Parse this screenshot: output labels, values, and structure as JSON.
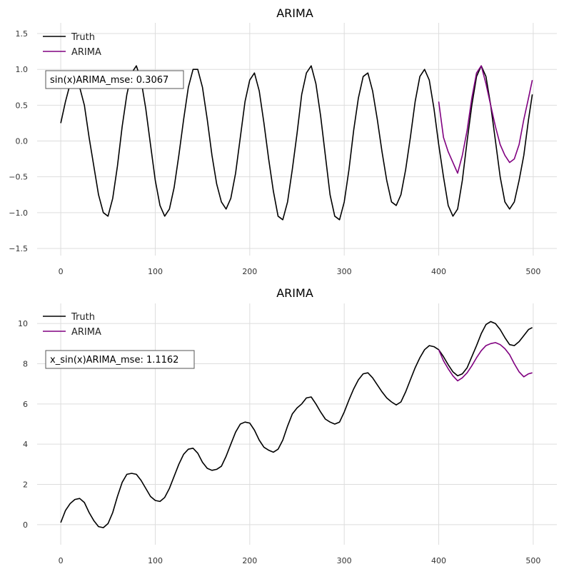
{
  "chart_data": [
    {
      "type": "line",
      "title": "ARIMA",
      "xlabel": "",
      "ylabel": "",
      "xlim": [
        -25,
        525
      ],
      "ylim": [
        -1.6,
        1.65
      ],
      "xticks": [
        0,
        100,
        200,
        300,
        400,
        500
      ],
      "xtick_labels": [
        "0",
        "100",
        "200",
        "300",
        "400",
        "500"
      ],
      "yticks": [
        -1.5,
        -1.0,
        -0.5,
        0.0,
        0.5,
        1.0,
        1.5
      ],
      "ytick_labels": [
        "−1.5",
        "−1.0",
        "−0.5",
        "0.0",
        "0.5",
        "1.0",
        "1.5"
      ],
      "grid": true,
      "legend_position": "top-left",
      "annotation": "sin(x)ARIMA_mse: 0.3067",
      "series": [
        {
          "name": "Truth",
          "color": "#000000",
          "x": [
            0,
            5,
            10,
            15,
            20,
            25,
            30,
            35,
            40,
            45,
            50,
            55,
            60,
            65,
            70,
            75,
            80,
            85,
            90,
            95,
            100,
            105,
            110,
            115,
            120,
            125,
            130,
            135,
            140,
            145,
            150,
            155,
            160,
            165,
            170,
            175,
            180,
            185,
            190,
            195,
            200,
            205,
            210,
            215,
            220,
            225,
            230,
            235,
            240,
            245,
            250,
            255,
            260,
            265,
            270,
            275,
            280,
            285,
            290,
            295,
            300,
            305,
            310,
            315,
            320,
            325,
            330,
            335,
            340,
            345,
            350,
            355,
            360,
            365,
            370,
            375,
            380,
            385,
            390,
            395,
            400,
            405,
            410,
            415,
            420,
            425,
            430,
            435,
            440,
            445,
            450,
            455,
            460,
            465,
            470,
            475,
            480,
            485,
            490,
            495,
            499
          ],
          "y": [
            0.25,
            0.55,
            0.8,
            0.9,
            0.75,
            0.5,
            0.05,
            -0.35,
            -0.75,
            -1.0,
            -1.05,
            -0.8,
            -0.35,
            0.2,
            0.65,
            0.95,
            1.05,
            0.85,
            0.45,
            -0.05,
            -0.55,
            -0.9,
            -1.05,
            -0.95,
            -0.65,
            -0.2,
            0.3,
            0.75,
            1.0,
            1.0,
            0.75,
            0.3,
            -0.2,
            -0.6,
            -0.85,
            -0.95,
            -0.8,
            -0.45,
            0.05,
            0.55,
            0.85,
            0.95,
            0.7,
            0.25,
            -0.25,
            -0.7,
            -1.05,
            -1.1,
            -0.85,
            -0.4,
            0.1,
            0.65,
            0.95,
            1.05,
            0.8,
            0.35,
            -0.2,
            -0.75,
            -1.05,
            -1.1,
            -0.85,
            -0.4,
            0.15,
            0.6,
            0.9,
            0.95,
            0.7,
            0.3,
            -0.15,
            -0.55,
            -0.85,
            -0.9,
            -0.75,
            -0.4,
            0.05,
            0.55,
            0.9,
            1.0,
            0.85,
            0.45,
            -0.05,
            -0.5,
            -0.9,
            -1.05,
            -0.95,
            -0.55,
            0.0,
            0.5,
            0.9,
            1.05,
            0.9,
            0.5,
            0.0,
            -0.5,
            -0.85,
            -0.95,
            -0.85,
            -0.55,
            -0.2,
            0.3,
            0.65
          ]
        },
        {
          "name": "ARIMA",
          "color": "#800080",
          "x": [
            400,
            405,
            410,
            415,
            420,
            425,
            430,
            435,
            440,
            445,
            450,
            455,
            460,
            465,
            470,
            475,
            480,
            485,
            490,
            495,
            499
          ],
          "y": [
            0.55,
            0.05,
            -0.15,
            -0.3,
            -0.45,
            -0.2,
            0.15,
            0.6,
            0.95,
            1.05,
            0.8,
            0.5,
            0.2,
            -0.05,
            -0.2,
            -0.3,
            -0.25,
            -0.05,
            0.3,
            0.6,
            0.85
          ]
        }
      ]
    },
    {
      "type": "line",
      "title": "ARIMA",
      "xlabel": "",
      "ylabel": "",
      "xlim": [
        -25,
        525
      ],
      "ylim": [
        -1.0,
        11.0
      ],
      "xticks": [
        0,
        100,
        200,
        300,
        400,
        500
      ],
      "xtick_labels": [
        "0",
        "100",
        "200",
        "300",
        "400",
        "500"
      ],
      "yticks": [
        0,
        2,
        4,
        6,
        8,
        10
      ],
      "ytick_labels": [
        "0",
        "2",
        "4",
        "6",
        "8",
        "10"
      ],
      "grid": true,
      "legend_position": "top-left",
      "annotation": "x_sin(x)ARIMA_mse: 1.1162",
      "series": [
        {
          "name": "Truth",
          "color": "#000000",
          "x": [
            0,
            5,
            10,
            15,
            20,
            25,
            30,
            35,
            40,
            45,
            50,
            55,
            60,
            65,
            70,
            75,
            80,
            85,
            90,
            95,
            100,
            105,
            110,
            115,
            120,
            125,
            130,
            135,
            140,
            145,
            150,
            155,
            160,
            165,
            170,
            175,
            180,
            185,
            190,
            195,
            200,
            205,
            210,
            215,
            220,
            225,
            230,
            235,
            240,
            245,
            250,
            255,
            260,
            265,
            270,
            275,
            280,
            285,
            290,
            295,
            300,
            305,
            310,
            315,
            320,
            325,
            330,
            335,
            340,
            345,
            350,
            355,
            360,
            365,
            370,
            375,
            380,
            385,
            390,
            395,
            400,
            405,
            410,
            415,
            420,
            425,
            430,
            435,
            440,
            445,
            450,
            455,
            460,
            465,
            470,
            475,
            480,
            485,
            490,
            495,
            499
          ],
          "y": [
            0.1,
            0.7,
            1.05,
            1.25,
            1.3,
            1.1,
            0.6,
            0.2,
            -0.1,
            -0.15,
            0.05,
            0.6,
            1.4,
            2.1,
            2.5,
            2.55,
            2.5,
            2.2,
            1.8,
            1.4,
            1.2,
            1.15,
            1.35,
            1.8,
            2.4,
            3.0,
            3.5,
            3.75,
            3.8,
            3.55,
            3.1,
            2.8,
            2.7,
            2.75,
            2.9,
            3.4,
            4.0,
            4.6,
            5.0,
            5.1,
            5.05,
            4.7,
            4.2,
            3.85,
            3.7,
            3.6,
            3.75,
            4.2,
            4.9,
            5.5,
            5.8,
            6.0,
            6.3,
            6.35,
            6.0,
            5.6,
            5.25,
            5.1,
            5.0,
            5.1,
            5.6,
            6.2,
            6.75,
            7.2,
            7.5,
            7.55,
            7.3,
            6.95,
            6.6,
            6.3,
            6.1,
            5.95,
            6.1,
            6.6,
            7.2,
            7.8,
            8.3,
            8.7,
            8.9,
            8.85,
            8.7,
            8.35,
            7.95,
            7.6,
            7.4,
            7.5,
            7.8,
            8.35,
            8.9,
            9.5,
            9.95,
            10.1,
            10.0,
            9.7,
            9.3,
            8.95,
            8.9,
            9.1,
            9.4,
            9.7,
            9.8
          ]
        },
        {
          "name": "ARIMA",
          "color": "#800080",
          "x": [
            400,
            405,
            410,
            415,
            420,
            425,
            430,
            435,
            440,
            445,
            450,
            455,
            460,
            465,
            470,
            475,
            480,
            485,
            490,
            495,
            499
          ],
          "y": [
            8.7,
            8.15,
            7.75,
            7.4,
            7.15,
            7.3,
            7.55,
            7.9,
            8.3,
            8.65,
            8.9,
            9.0,
            9.05,
            8.95,
            8.75,
            8.45,
            8.0,
            7.6,
            7.35,
            7.5,
            7.55
          ]
        }
      ]
    }
  ]
}
